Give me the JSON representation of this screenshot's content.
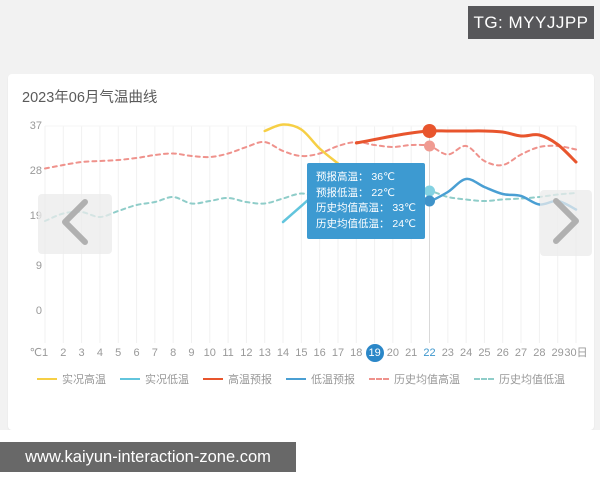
{
  "watermark": {
    "tg_badge": "TG: MYYJJPP",
    "url_bar": "www.kaiyun-interaction-zone.com"
  },
  "card": {
    "title": "2023年06月气温曲线"
  },
  "tooltip": {
    "bg": "#3d9ad1",
    "rows": [
      {
        "label": "预报高温",
        "value": "36℃"
      },
      {
        "label": "预报低温",
        "value": "22℃"
      },
      {
        "label": "历史均值高温",
        "value": "33℃"
      },
      {
        "label": "历史均值低温",
        "value": "24℃"
      }
    ]
  },
  "legend": {
    "items": [
      {
        "label": "实况高温",
        "color": "#f6cf45",
        "dashed": false
      },
      {
        "label": "实况低温",
        "color": "#62c5dd",
        "dashed": false
      },
      {
        "label": "高温预报",
        "color": "#e8552d",
        "dashed": false
      },
      {
        "label": "低温预报",
        "color": "#4a9fd3",
        "dashed": false
      },
      {
        "label": "历史均值高温",
        "color": "#ef928c",
        "dashed": true
      },
      {
        "label": "历史均值低温",
        "color": "#8fcdc9",
        "dashed": true
      }
    ]
  },
  "chart_data": {
    "type": "line",
    "title": "2023年06月气温曲线",
    "y_unit": "℃",
    "x_unit": "日",
    "ylim": [
      0,
      40
    ],
    "y_ticks": [
      37,
      28,
      19,
      9,
      0
    ],
    "x": [
      1,
      2,
      3,
      4,
      5,
      6,
      7,
      8,
      9,
      10,
      11,
      12,
      13,
      14,
      15,
      16,
      17,
      18,
      19,
      20,
      21,
      22,
      23,
      24,
      25,
      26,
      27,
      28,
      29,
      30
    ],
    "x_labels": [
      "1",
      "2",
      "3",
      "4",
      "5",
      "6",
      "7",
      "8",
      "9",
      "10",
      "11",
      "12",
      "13",
      "14",
      "15",
      "16",
      "17",
      "18",
      "19",
      "20",
      "21",
      "22",
      "23",
      "24",
      "25",
      "26",
      "27",
      "28",
      "29",
      "30日"
    ],
    "today_day": 19,
    "selected_day": 22,
    "grid": true,
    "legend_position": "bottom",
    "series": [
      {
        "name": "历史均值高温",
        "color": "#ef928c",
        "style": "dashed",
        "width": 2,
        "values": [
          28.5,
          29.2,
          29.8,
          30.0,
          30.2,
          30.6,
          31.2,
          31.5,
          31.0,
          30.8,
          31.5,
          32.8,
          33.8,
          32.0,
          31.0,
          31.5,
          33.0,
          33.8,
          33.2,
          32.8,
          33.2,
          33.0,
          31.3,
          33.0,
          30.0,
          29.2,
          31.3,
          32.8,
          33.0,
          32.3
        ]
      },
      {
        "name": "历史均值低温",
        "color": "#8fcdc9",
        "style": "dashed",
        "width": 2,
        "values": [
          18.0,
          19.5,
          19.8,
          18.8,
          20.0,
          21.2,
          21.8,
          22.8,
          21.5,
          22.0,
          22.6,
          21.8,
          21.5,
          22.5,
          23.5,
          22.8,
          23.0,
          23.2,
          23.4,
          23.6,
          23.8,
          24.0,
          22.8,
          22.3,
          22.0,
          22.3,
          22.5,
          22.8,
          23.3,
          23.6
        ]
      },
      {
        "name": "实况高温",
        "color": "#f6cf45",
        "style": "solid",
        "width": 2.5,
        "points": [
          [
            13,
            36.0
          ],
          [
            14,
            37.3
          ],
          [
            15,
            36.3
          ],
          [
            16,
            32.5
          ],
          [
            17,
            29.5
          ]
        ]
      },
      {
        "name": "实况低温",
        "color": "#62c5dd",
        "style": "solid",
        "width": 2.5,
        "points": [
          [
            14,
            17.8
          ],
          [
            15,
            21.0
          ],
          [
            15.5,
            22.6
          ],
          [
            16,
            23.8
          ],
          [
            17,
            25.0
          ]
        ]
      },
      {
        "name": "高温预报",
        "color": "#e8552d",
        "style": "solid",
        "width": 3,
        "points": [
          [
            18,
            33.6
          ],
          [
            19,
            34.3
          ],
          [
            20,
            35.0
          ],
          [
            21,
            35.6
          ],
          [
            22,
            36.0
          ],
          [
            23,
            36.0
          ],
          [
            24,
            36.0
          ],
          [
            25,
            36.0
          ],
          [
            26,
            35.8
          ],
          [
            27,
            35.0
          ],
          [
            28,
            35.2
          ],
          [
            29,
            33.3
          ],
          [
            30,
            29.8
          ]
        ]
      },
      {
        "name": "低温预报",
        "color": "#4a9fd3",
        "style": "solid",
        "width": 2.5,
        "points": [
          [
            22,
            21.8
          ],
          [
            23,
            23.8
          ],
          [
            24,
            26.4
          ],
          [
            25,
            24.8
          ],
          [
            26,
            23.4
          ],
          [
            27,
            23.0
          ],
          [
            28,
            21.3
          ],
          [
            29,
            22.0
          ],
          [
            30,
            20.3
          ]
        ]
      }
    ],
    "markers": [
      {
        "day": 22,
        "value": 36,
        "color": "#e8552d",
        "r": 7
      },
      {
        "day": 22,
        "value": 33,
        "color": "#f09b92",
        "r": 5.5
      },
      {
        "day": 22,
        "value": 24,
        "color": "#84d2e2",
        "r": 5.5
      },
      {
        "day": 22,
        "value": 22,
        "color": "#3f93c9",
        "r": 5.5
      }
    ]
  }
}
